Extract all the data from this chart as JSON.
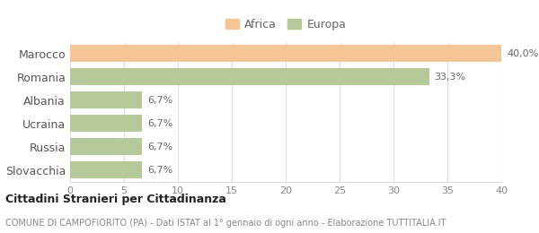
{
  "categories": [
    "Marocco",
    "Romania",
    "Albania",
    "Ucraina",
    "Russia",
    "Slovacchia"
  ],
  "values": [
    40.0,
    33.3,
    6.7,
    6.7,
    6.7,
    6.7
  ],
  "labels": [
    "40,0%",
    "33,3%",
    "6,7%",
    "6,7%",
    "6,7%",
    "6,7%"
  ],
  "colors": [
    "#f5c497",
    "#b5c99a",
    "#b5c99a",
    "#b5c99a",
    "#b5c99a",
    "#b5c99a"
  ],
  "legend": [
    {
      "label": "Africa",
      "color": "#f5c497"
    },
    {
      "label": "Europa",
      "color": "#b5c99a"
    }
  ],
  "xlim": [
    0,
    40
  ],
  "xticks": [
    0,
    5,
    10,
    15,
    20,
    25,
    30,
    35,
    40
  ],
  "title": "Cittadini Stranieri per Cittadinanza",
  "subtitle": "COMUNE DI CAMPOFIORITO (PA) - Dati ISTAT al 1° gennaio di ogni anno - Elaborazione TUTTITALIA.IT",
  "background_color": "#ffffff",
  "grid_color": "#dddddd",
  "bar_height": 0.72
}
